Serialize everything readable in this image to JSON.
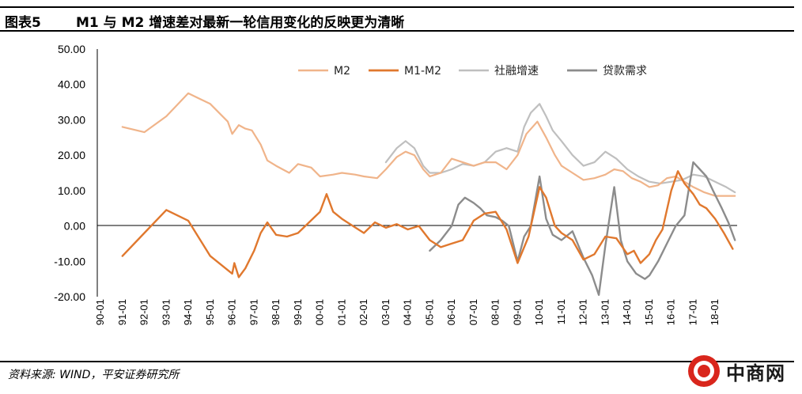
{
  "figure": {
    "label": "图表5",
    "title": "M1 与 M2 增速差对最新一轮信用变化的反映更为清晰",
    "source": "资料来源: WIND，平安证券研究所",
    "watermark": "中商网"
  },
  "colors": {
    "M2": "#F0B48A",
    "M1-M2": "#E0782E",
    "social_financing": "#BFBFBF",
    "loan_demand": "#8C8C8C",
    "watermark_red": "#D9261C"
  },
  "chart_data": {
    "type": "line",
    "title": "",
    "xlabel": "",
    "ylabel": "",
    "ylim": [
      -20,
      50
    ],
    "yticks": [
      "50.00",
      "40.00",
      "30.00",
      "20.00",
      "10.00",
      "0.00",
      "-10.00",
      "-20.00"
    ],
    "xticks": [
      "90-01",
      "91-01",
      "92-01",
      "93-01",
      "94-01",
      "95-01",
      "96-01",
      "97-01",
      "98-01",
      "99-01",
      "00-01",
      "01-01",
      "02-01",
      "03-01",
      "04-01",
      "05-01",
      "06-01",
      "07-01",
      "08-01",
      "09-01",
      "10-01",
      "11-01",
      "12-01",
      "13-01",
      "14-01",
      "15-01",
      "16-01",
      "17-01",
      "18-01"
    ],
    "grid": false,
    "legend_position": "top-right",
    "series": [
      {
        "name": "M2",
        "x": [
          1991.0,
          1992.0,
          1993.0,
          1994.0,
          1995.0,
          1995.8,
          1996.0,
          1996.3,
          1996.6,
          1996.9,
          1997.3,
          1997.6,
          1998.0,
          1998.6,
          1999.0,
          1999.6,
          2000.0,
          2000.6,
          2001.0,
          2001.6,
          2002.0,
          2002.6,
          2003.0,
          2003.5,
          2003.9,
          2004.3,
          2004.7,
          2005.0,
          2005.5,
          2006.0,
          2006.5,
          2007.0,
          2007.5,
          2008.0,
          2008.5,
          2009.0,
          2009.4,
          2009.9,
          2010.3,
          2010.7,
          2011.0,
          2011.5,
          2012.0,
          2012.5,
          2013.0,
          2013.4,
          2013.8,
          2014.2,
          2014.6,
          2015.0,
          2015.4,
          2015.8,
          2016.2,
          2016.6,
          2017.0,
          2017.5,
          2018.0,
          2018.5,
          2018.9
        ],
        "y": [
          28.0,
          26.5,
          31.0,
          37.5,
          34.5,
          29.5,
          26.0,
          28.5,
          27.5,
          27.0,
          23.0,
          18.5,
          17.0,
          15.0,
          17.5,
          16.5,
          14.0,
          14.5,
          15.0,
          14.5,
          14.0,
          13.5,
          16.0,
          19.5,
          21.0,
          20.0,
          16.0,
          14.0,
          15.0,
          19.0,
          18.0,
          17.0,
          18.0,
          18.0,
          16.0,
          20.0,
          26.0,
          29.5,
          25.0,
          20.0,
          17.0,
          15.0,
          13.0,
          13.5,
          14.5,
          16.0,
          15.5,
          13.5,
          12.5,
          11.0,
          11.5,
          13.5,
          14.0,
          12.5,
          11.0,
          9.5,
          8.5,
          8.5,
          8.5
        ]
      },
      {
        "name": "M1-M2",
        "x": [
          1991.0,
          1992.0,
          1993.0,
          1994.0,
          1995.0,
          1996.0,
          1996.1,
          1996.3,
          1996.6,
          1997.0,
          1997.3,
          1997.6,
          1998.0,
          1998.5,
          1999.0,
          1999.5,
          2000.0,
          2000.3,
          2000.6,
          2001.0,
          2001.5,
          2002.0,
          2002.5,
          2003.0,
          2003.5,
          2004.0,
          2004.5,
          2005.0,
          2005.5,
          2006.0,
          2006.5,
          2007.0,
          2007.5,
          2008.0,
          2008.5,
          2009.0,
          2009.5,
          2010.0,
          2010.3,
          2010.7,
          2011.0,
          2011.5,
          2012.0,
          2012.5,
          2013.0,
          2013.5,
          2014.0,
          2014.3,
          2014.6,
          2015.0,
          2015.3,
          2015.6,
          2016.0,
          2016.3,
          2016.6,
          2017.0,
          2017.3,
          2017.6,
          2018.0,
          2018.4,
          2018.8
        ],
        "y": [
          -8.5,
          -2.0,
          4.5,
          1.5,
          -8.5,
          -13.5,
          -10.5,
          -14.5,
          -12.0,
          -7.0,
          -2.0,
          1.0,
          -2.5,
          -3.0,
          -2.0,
          1.0,
          4.0,
          9.0,
          4.0,
          2.0,
          0.0,
          -2.0,
          1.0,
          -0.5,
          0.5,
          -1.0,
          0.0,
          -4.0,
          -6.0,
          -5.0,
          -4.0,
          1.5,
          3.5,
          4.0,
          -1.0,
          -10.5,
          -3.0,
          11.0,
          8.0,
          0.0,
          -2.0,
          -4.0,
          -9.5,
          -8.0,
          -3.0,
          -3.5,
          -8.0,
          -7.0,
          -10.5,
          -8.0,
          -4.0,
          -1.0,
          10.0,
          15.5,
          12.0,
          9.0,
          6.0,
          5.0,
          2.0,
          -2.0,
          -6.5
        ]
      },
      {
        "name": "社融增速",
        "x": [
          2003.0,
          2003.5,
          2003.9,
          2004.3,
          2004.7,
          2005.0,
          2005.5,
          2006.0,
          2006.5,
          2007.0,
          2007.5,
          2008.0,
          2008.5,
          2009.0,
          2009.3,
          2009.6,
          2010.0,
          2010.3,
          2010.6,
          2011.0,
          2011.5,
          2012.0,
          2012.5,
          2013.0,
          2013.5,
          2014.0,
          2014.5,
          2015.0,
          2015.5,
          2016.0,
          2016.5,
          2017.0,
          2017.5,
          2018.0,
          2018.5,
          2018.9
        ],
        "y": [
          18.0,
          22.0,
          24.0,
          22.0,
          17.0,
          15.0,
          15.0,
          16.0,
          17.5,
          17.0,
          18.0,
          21.0,
          22.0,
          21.0,
          28.0,
          32.0,
          34.5,
          31.0,
          27.0,
          24.0,
          20.0,
          17.0,
          18.0,
          21.0,
          19.0,
          16.0,
          14.0,
          12.5,
          12.0,
          12.5,
          13.0,
          14.5,
          14.0,
          12.5,
          11.0,
          9.5
        ]
      },
      {
        "name": "贷款需求",
        "x": [
          2005.0,
          2005.5,
          2006.0,
          2006.3,
          2006.6,
          2007.0,
          2007.3,
          2007.6,
          2008.0,
          2008.3,
          2008.6,
          2009.0,
          2009.3,
          2009.6,
          2010.0,
          2010.3,
          2010.6,
          2011.0,
          2011.5,
          2012.0,
          2012.4,
          2012.7,
          2013.0,
          2013.4,
          2013.7,
          2014.0,
          2014.4,
          2014.8,
          2015.0,
          2015.4,
          2015.8,
          2016.2,
          2016.6,
          2017.0,
          2017.3,
          2017.6,
          2017.9,
          2018.3,
          2018.6,
          2018.9
        ],
        "y": [
          -7.0,
          -4.0,
          0.0,
          6.0,
          8.0,
          6.5,
          5.0,
          3.0,
          2.5,
          1.5,
          0.0,
          -10.0,
          -3.0,
          0.0,
          14.0,
          2.0,
          -2.5,
          -4.0,
          -1.5,
          -9.0,
          -14.0,
          -19.5,
          -5.5,
          11.0,
          -4.0,
          -10.0,
          -13.5,
          -15.0,
          -14.0,
          -10.0,
          -5.0,
          0.0,
          3.0,
          18.0,
          16.0,
          14.0,
          10.0,
          5.0,
          1.0,
          -4.0
        ]
      }
    ]
  }
}
